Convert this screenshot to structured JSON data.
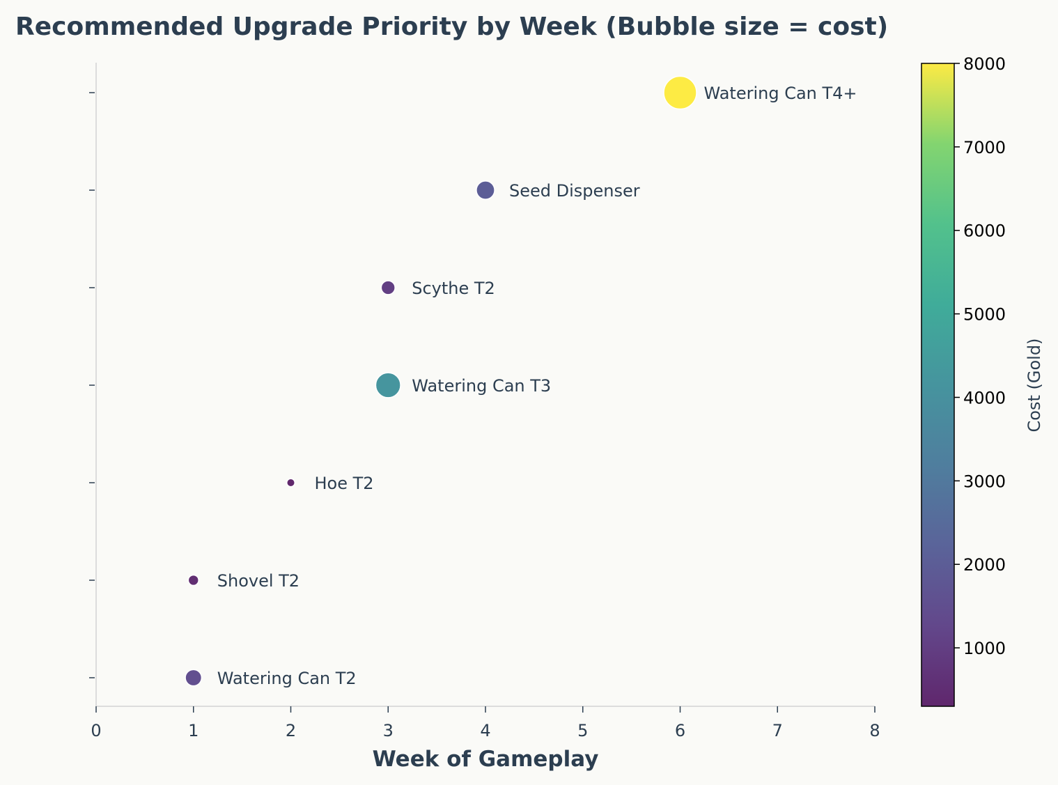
{
  "chart_data": {
    "type": "scatter",
    "title": "Recommended Upgrade Priority by Week (Bubble size = cost)",
    "xlabel": "Week of Gameplay",
    "ylabel": "",
    "xlim": [
      0,
      8
    ],
    "xticks": [
      "0",
      "1",
      "2",
      "3",
      "4",
      "5",
      "6",
      "7",
      "8"
    ],
    "grid": false,
    "points": [
      {
        "label": "Watering Can T2",
        "week": 1,
        "cost": 1500
      },
      {
        "label": "Shovel T2",
        "week": 1,
        "cost": 500
      },
      {
        "label": "Hoe T2",
        "week": 2,
        "cost": 300
      },
      {
        "label": "Watering Can T3",
        "week": 3,
        "cost": 4200
      },
      {
        "label": "Scythe T2",
        "week": 3,
        "cost": 1000
      },
      {
        "label": "Seed Dispenser",
        "week": 4,
        "cost": 2000
      },
      {
        "label": "Watering Can T4+",
        "week": 6,
        "cost": 8000
      }
    ],
    "colorbar": {
      "label": "Cost (Gold)",
      "range": [
        300,
        8000
      ],
      "ticks": [
        "1000",
        "2000",
        "3000",
        "4000",
        "5000",
        "6000",
        "7000",
        "8000"
      ],
      "colormap": "viridis"
    }
  }
}
